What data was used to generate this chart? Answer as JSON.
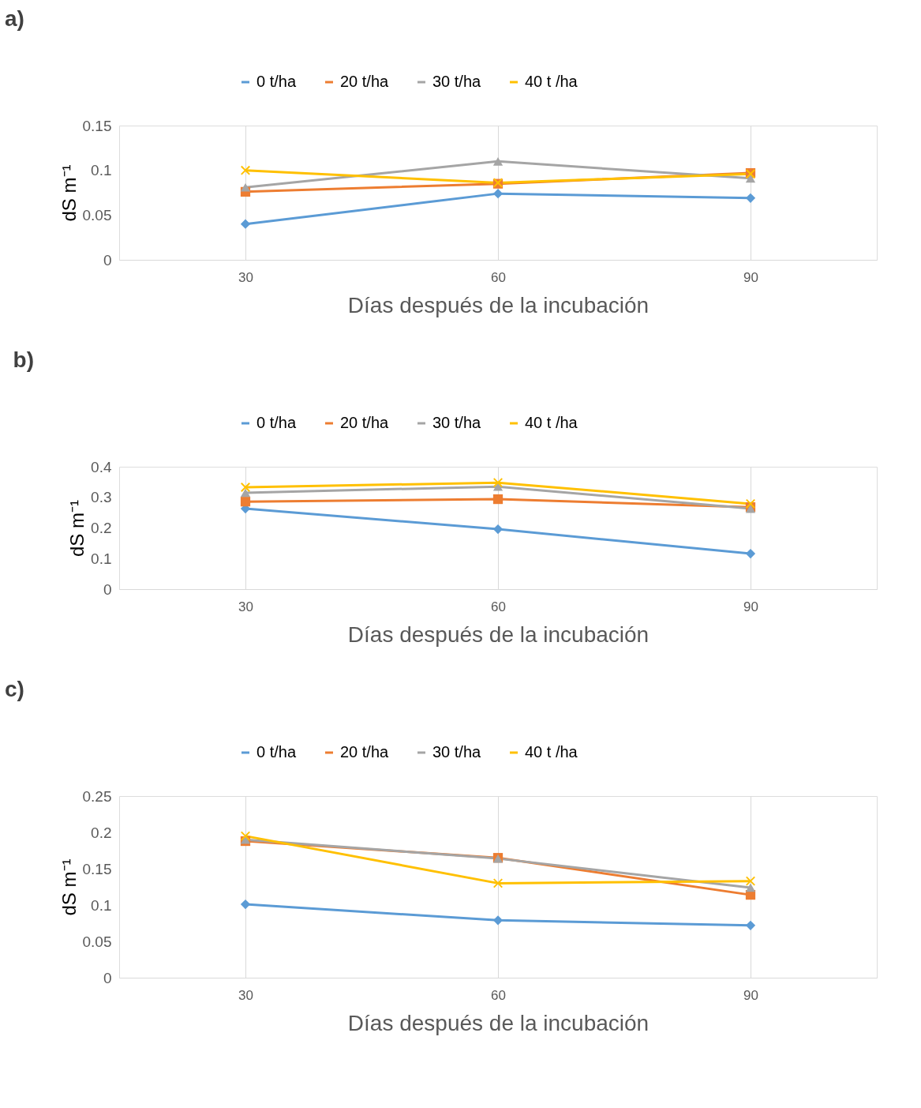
{
  "chart_data": [
    {
      "type": "line",
      "title": "a)",
      "xlabel": "Días después de la incubación",
      "ylabel": "dS m⁻¹",
      "categories": [
        "30",
        "60",
        "90"
      ],
      "ylim": [
        0,
        0.15
      ],
      "yticks": [
        0,
        0.05,
        0.1,
        0.15
      ],
      "grid": "x",
      "legend": "top",
      "series": [
        {
          "name": "0 t/ha",
          "color": "#5b9bd5",
          "marker": "diamond",
          "values": [
            0.04,
            0.074,
            0.069
          ]
        },
        {
          "name": "20 t/ha",
          "color": "#ed7d31",
          "marker": "square",
          "values": [
            0.076,
            0.085,
            0.097
          ]
        },
        {
          "name": "30 t/ha",
          "color": "#a5a5a5",
          "marker": "triangle",
          "values": [
            0.081,
            0.11,
            0.091
          ]
        },
        {
          "name": "40 t /ha",
          "color": "#ffc000",
          "marker": "cross",
          "values": [
            0.1,
            0.086,
            0.096
          ]
        }
      ]
    },
    {
      "type": "line",
      "title": "b)",
      "xlabel": "Días después de la incubación",
      "ylabel": "dS m⁻¹",
      "categories": [
        "30",
        "60",
        "90"
      ],
      "ylim": [
        0,
        0.4
      ],
      "yticks": [
        0,
        0.1,
        0.2,
        0.3,
        0.4
      ],
      "grid": "x",
      "legend": "top",
      "series": [
        {
          "name": "0 t/ha",
          "color": "#5b9bd5",
          "marker": "diamond",
          "values": [
            0.263,
            0.196,
            0.116
          ]
        },
        {
          "name": "20 t/ha",
          "color": "#ed7d31",
          "marker": "square",
          "values": [
            0.286,
            0.294,
            0.268
          ]
        },
        {
          "name": "30 t/ha",
          "color": "#a5a5a5",
          "marker": "triangle",
          "values": [
            0.315,
            0.335,
            0.263
          ]
        },
        {
          "name": "40 t /ha",
          "color": "#ffc000",
          "marker": "cross",
          "values": [
            0.333,
            0.348,
            0.279
          ]
        }
      ]
    },
    {
      "type": "line",
      "title": "c)",
      "xlabel": "Días después de la incubación",
      "ylabel": "dS m⁻¹",
      "categories": [
        "30",
        "60",
        "90"
      ],
      "ylim": [
        0,
        0.25
      ],
      "yticks": [
        0,
        0.05,
        0.1,
        0.15,
        0.2,
        0.25
      ],
      "grid": "x",
      "legend": "top",
      "series": [
        {
          "name": "0 t/ha",
          "color": "#5b9bd5",
          "marker": "diamond",
          "values": [
            0.101,
            0.079,
            0.072
          ]
        },
        {
          "name": "20 t/ha",
          "color": "#ed7d31",
          "marker": "square",
          "values": [
            0.188,
            0.165,
            0.114
          ]
        },
        {
          "name": "30 t/ha",
          "color": "#a5a5a5",
          "marker": "triangle",
          "values": [
            0.19,
            0.164,
            0.124
          ]
        },
        {
          "name": "40 t /ha",
          "color": "#ffc000",
          "marker": "cross",
          "values": [
            0.195,
            0.13,
            0.133
          ]
        }
      ]
    }
  ]
}
